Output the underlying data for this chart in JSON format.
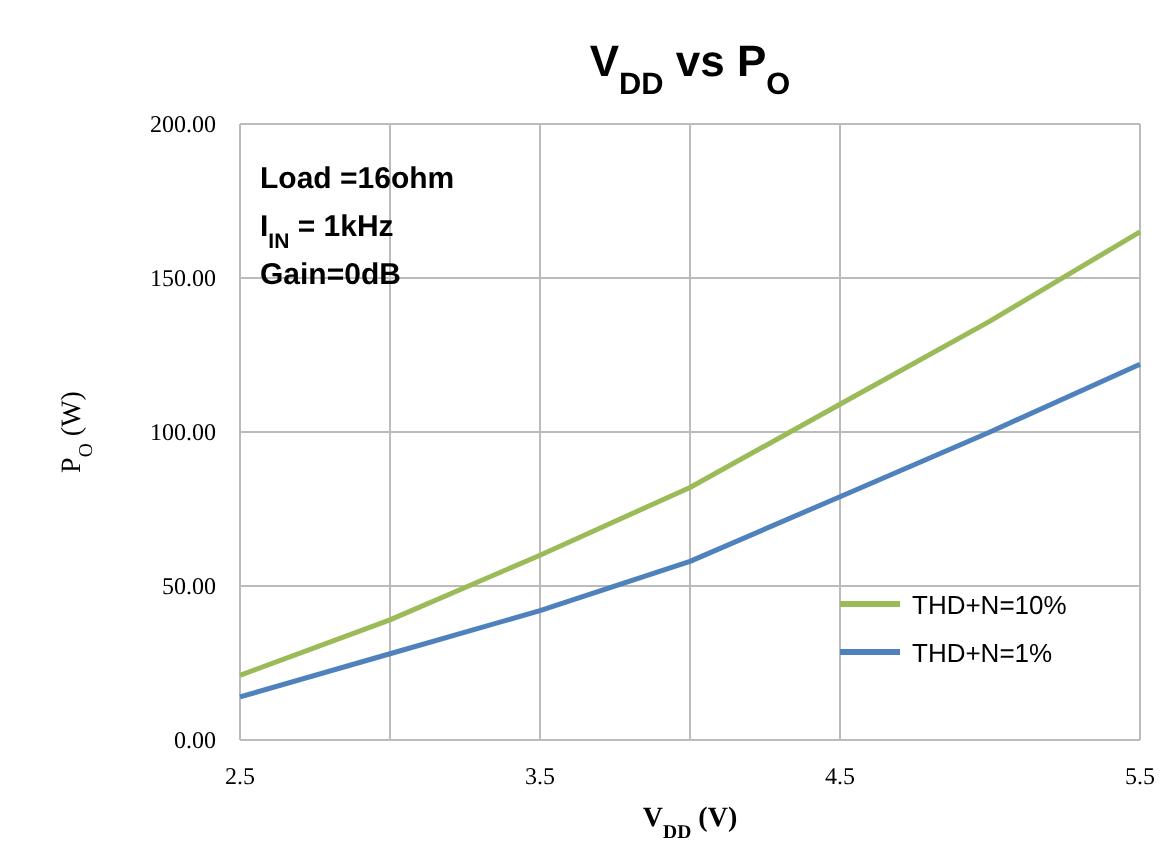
{
  "chart_data": {
    "type": "line",
    "title": "V$_{DD}$ vs P$_{O}$",
    "xlabel": "V$_{DD}$ (V)",
    "ylabel": "P$_{O}$ (W)",
    "annotations": [
      "Load =16ohm",
      "I$_{IN}$ = 1kHz",
      "Gain=0dB"
    ],
    "x": [
      2.5,
      3,
      3.5,
      4,
      4.5,
      5,
      5.5
    ],
    "series": [
      {
        "name": "THD+N=10%",
        "color": "#9bbb59",
        "values": [
          21,
          39,
          60,
          82,
          109,
          136,
          165
        ]
      },
      {
        "name": "THD+N=1%",
        "color": "#4f81bd",
        "values": [
          14,
          28,
          42,
          58,
          79,
          100,
          122
        ]
      }
    ],
    "xlim": [
      2.5,
      5.5
    ],
    "xticks": [
      2.5,
      {
        "value": 3,
        "label": null
      },
      3.5,
      {
        "value": 4,
        "label": null
      },
      4.5,
      5.5
    ],
    "ylim": [
      0,
      200
    ],
    "yticks": [
      {
        "value": 0,
        "label": "0.00"
      },
      {
        "value": 50,
        "label": "50.00"
      },
      {
        "value": 100,
        "label": "100.00"
      },
      {
        "value": 150,
        "label": "150.00"
      },
      {
        "value": 200,
        "label": "200.00"
      }
    ],
    "grid": true,
    "legend": "bottom right",
    "marker": "none",
    "line_style": "solid"
  }
}
